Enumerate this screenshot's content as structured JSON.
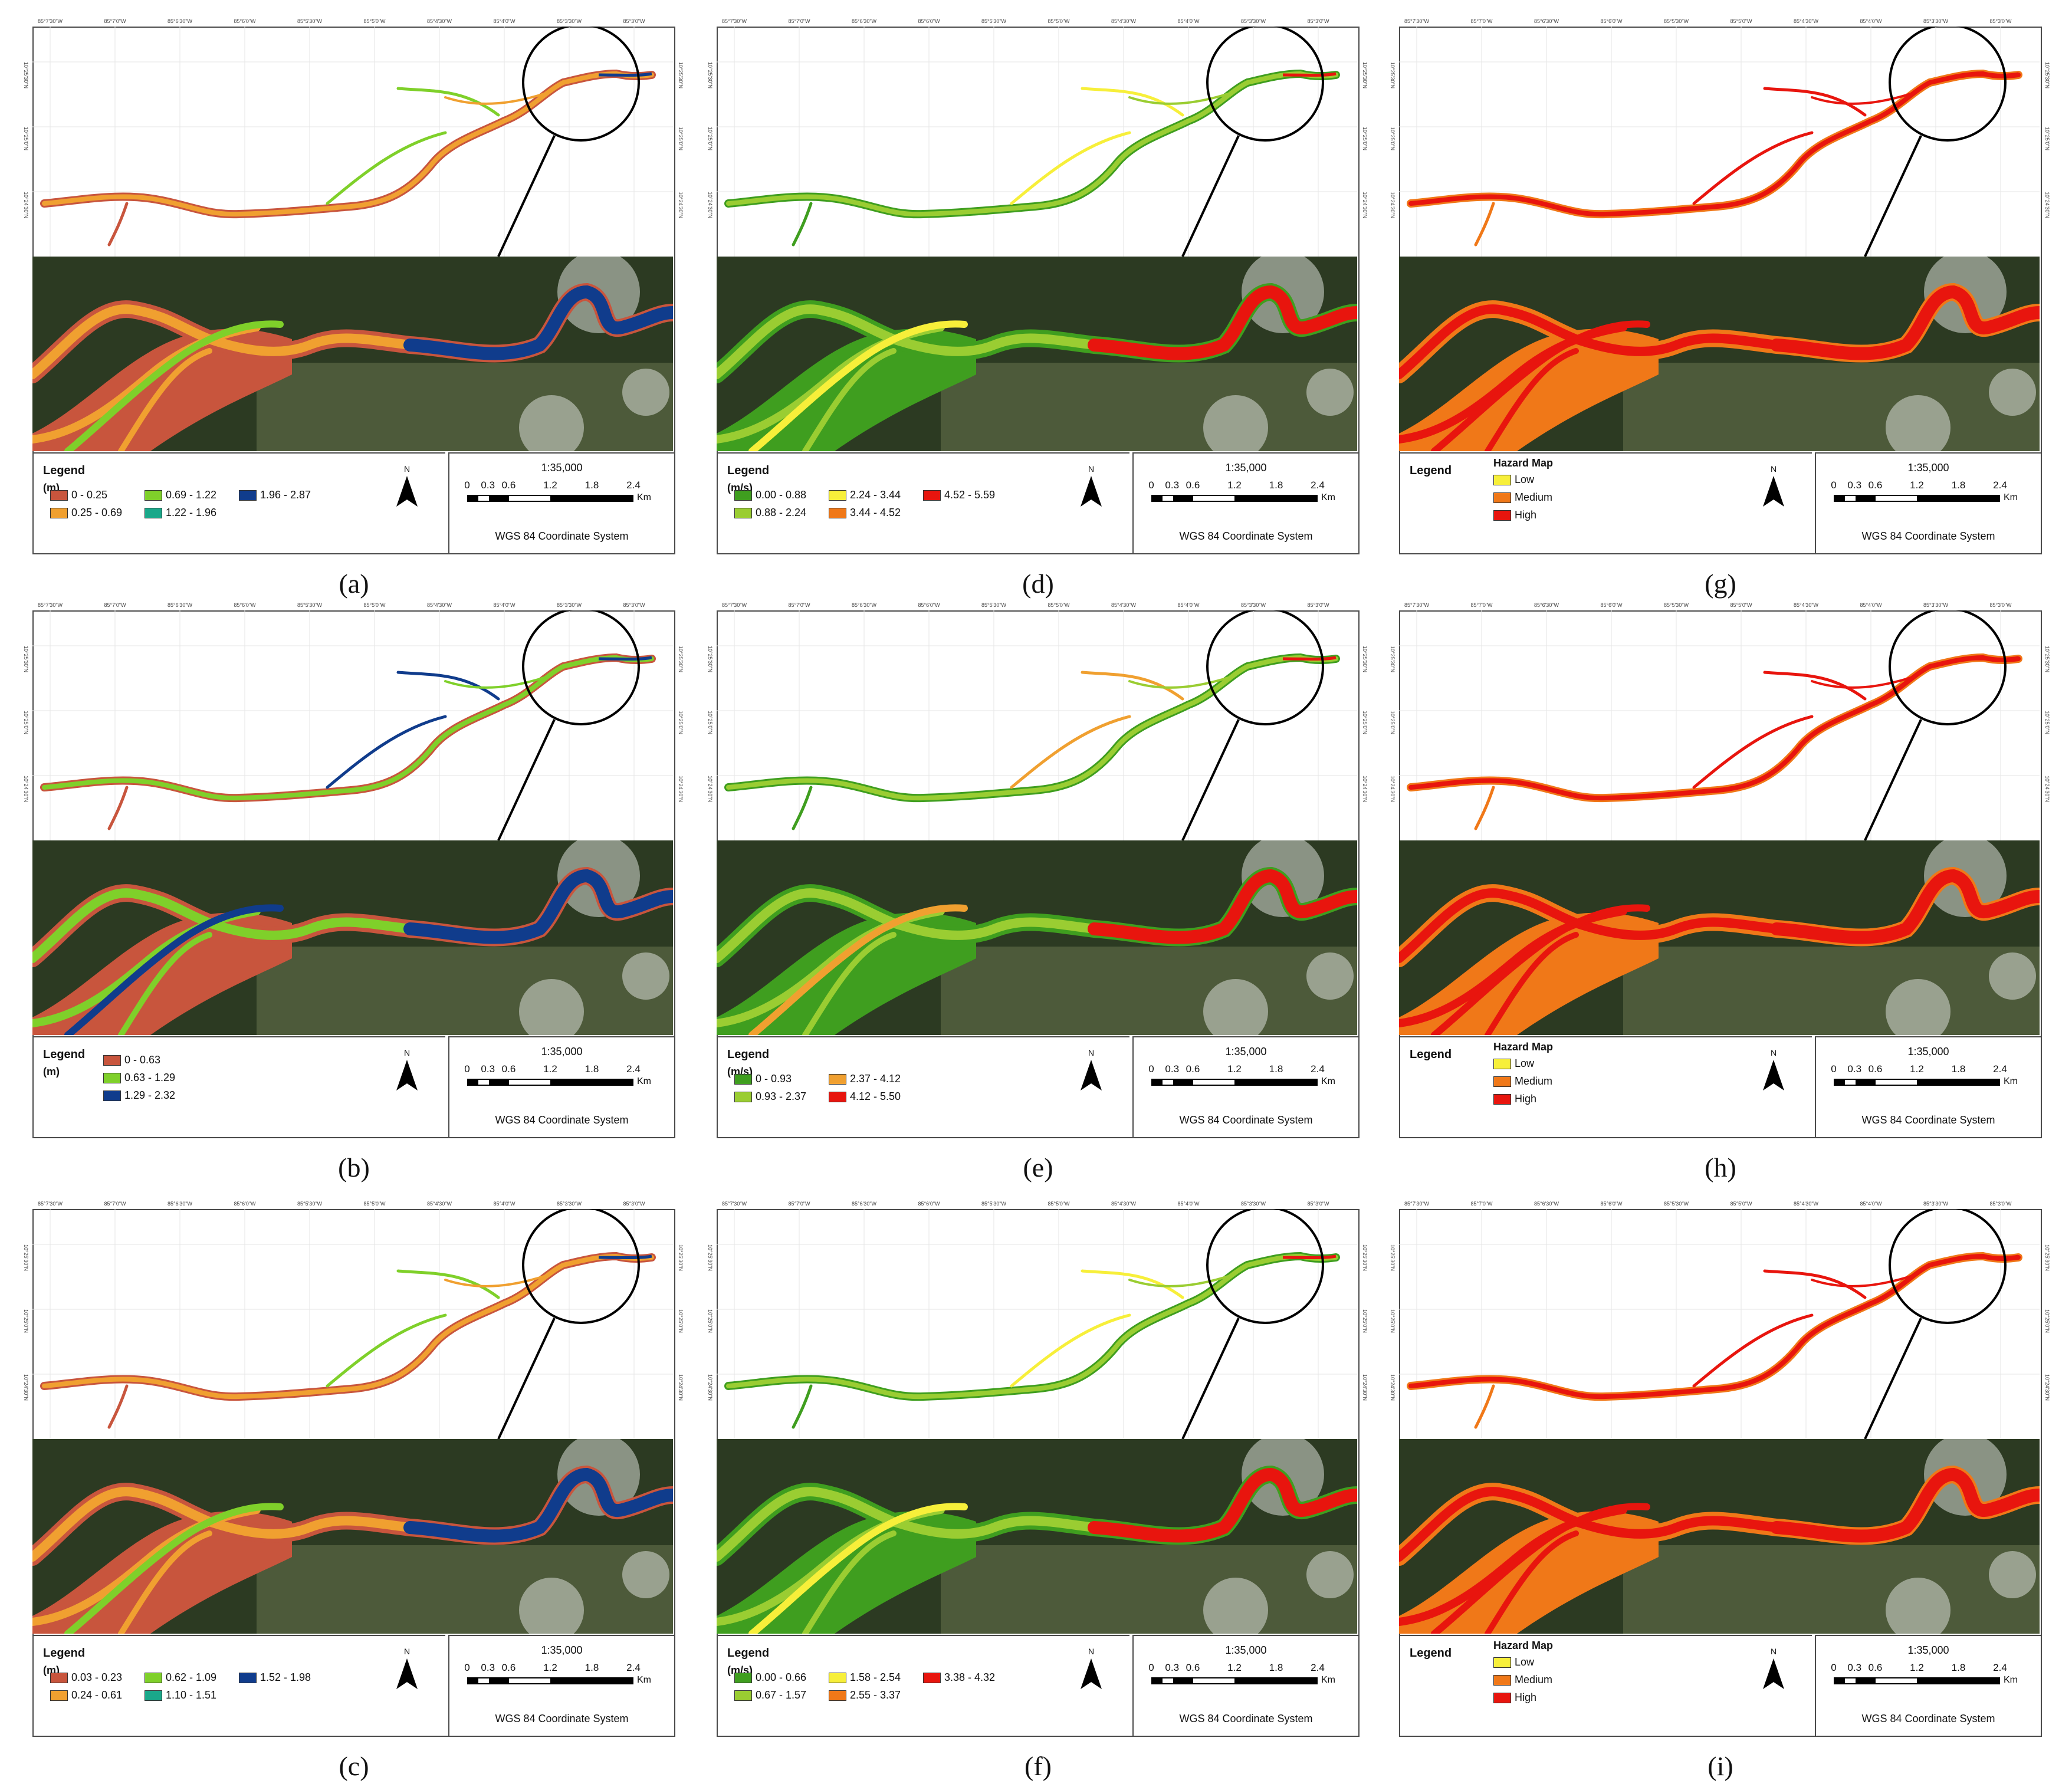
{
  "map_common": {
    "top_ticks": [
      "85°7'30\"W",
      "85°7'0\"W",
      "85°6'30\"W",
      "85°6'0\"W",
      "85°5'30\"W",
      "85°5'0\"W",
      "85°4'30\"W",
      "85°4'0\"W",
      "85°3'30\"W",
      "85°3'0\"W"
    ],
    "side_ticks": [
      "10°25'30\"N",
      "10°25'0\"N",
      "10°24'30\"N"
    ],
    "scale_ratio": "1:35,000",
    "scale_numbers": [
      "0",
      "0.3",
      "0.6",
      "1.2",
      "1.8",
      "2.4"
    ],
    "scale_unit": "Km",
    "coord_system": "WGS 84 Coordinate System",
    "north_label": "N",
    "legend_title": "Legend"
  },
  "colors": {
    "depth_red": "#c8553d",
    "orange": "#f0a030",
    "green": "#7fd02a",
    "teal": "#1aa88a",
    "navy": "#103c8c",
    "dgreen": "#3f9e1f",
    "yellow": "#f7ef3a",
    "vorange": "#f07818",
    "red": "#e8150e",
    "hz_low": "#f7ef3a",
    "hz_med": "#f07818",
    "hz_high": "#e8150e",
    "sat_dark": "#2c3a22"
  },
  "panels": [
    {
      "id": "a",
      "caption": "(a)",
      "unit": "(m)",
      "title": "",
      "items": [
        "0 - 0.25",
        "0.25 - 0.69",
        "0.69 - 1.22",
        "1.22 - 1.96",
        "1.96 - 2.87"
      ],
      "colors": [
        "#c8553d",
        "#f0a030",
        "#7fd02a",
        "#1aa88a",
        "#103c8c"
      ]
    },
    {
      "id": "d",
      "caption": "(d)",
      "unit": "(m/s)",
      "title": "",
      "items": [
        "0.00 - 0.88",
        "0.88 - 2.24",
        "2.24 - 3.44",
        "3.44 - 4.52",
        "4.52 - 5.59"
      ],
      "colors": [
        "#3f9e1f",
        "#9acd32",
        "#f7ef3a",
        "#f07818",
        "#e8150e"
      ]
    },
    {
      "id": "g",
      "caption": "(g)",
      "unit": "",
      "title": "Hazard Map",
      "items": [
        "Low",
        "Medium",
        "High"
      ],
      "colors": [
        "#f7ef3a",
        "#f07818",
        "#e8150e"
      ]
    },
    {
      "id": "b",
      "caption": "(b)",
      "unit": "(m)",
      "title": "",
      "items": [
        "0 - 0.63",
        "0.63 - 1.29",
        "1.29 - 2.32"
      ],
      "colors": [
        "#c8553d",
        "#7fd02a",
        "#103c8c"
      ]
    },
    {
      "id": "e",
      "caption": "(e)",
      "unit": "(m/s)",
      "title": "",
      "items": [
        "0 - 0.93",
        "0.93 - 2.37",
        "2.37 - 4.12",
        "4.12 - 5.50"
      ],
      "colors": [
        "#3f9e1f",
        "#9acd32",
        "#f0a030",
        "#e8150e"
      ]
    },
    {
      "id": "h",
      "caption": "(h)",
      "unit": "",
      "title": "Hazard Map",
      "items": [
        "Low",
        "Medium",
        "High"
      ],
      "colors": [
        "#f7ef3a",
        "#f07818",
        "#e8150e"
      ]
    },
    {
      "id": "c",
      "caption": "(c)",
      "unit": "(m)",
      "title": "",
      "items": [
        "0.03 - 0.23",
        "0.24 - 0.61",
        "0.62 - 1.09",
        "1.10 - 1.51",
        "1.52 - 1.98"
      ],
      "colors": [
        "#c8553d",
        "#f0a030",
        "#7fd02a",
        "#1aa88a",
        "#103c8c"
      ]
    },
    {
      "id": "f",
      "caption": "(f)",
      "unit": "(m/s)",
      "title": "",
      "items": [
        "0.00 - 0.66",
        "0.67 - 1.57",
        "1.58 - 2.54",
        "2.55 - 3.37",
        "3.38 - 4.32"
      ],
      "colors": [
        "#3f9e1f",
        "#9acd32",
        "#f7ef3a",
        "#f07818",
        "#e8150e"
      ]
    },
    {
      "id": "i",
      "caption": "(i)",
      "unit": "",
      "title": "Hazard Map",
      "items": [
        "Low",
        "Medium",
        "High"
      ],
      "colors": [
        "#f7ef3a",
        "#f07818",
        "#e8150e"
      ]
    }
  ]
}
